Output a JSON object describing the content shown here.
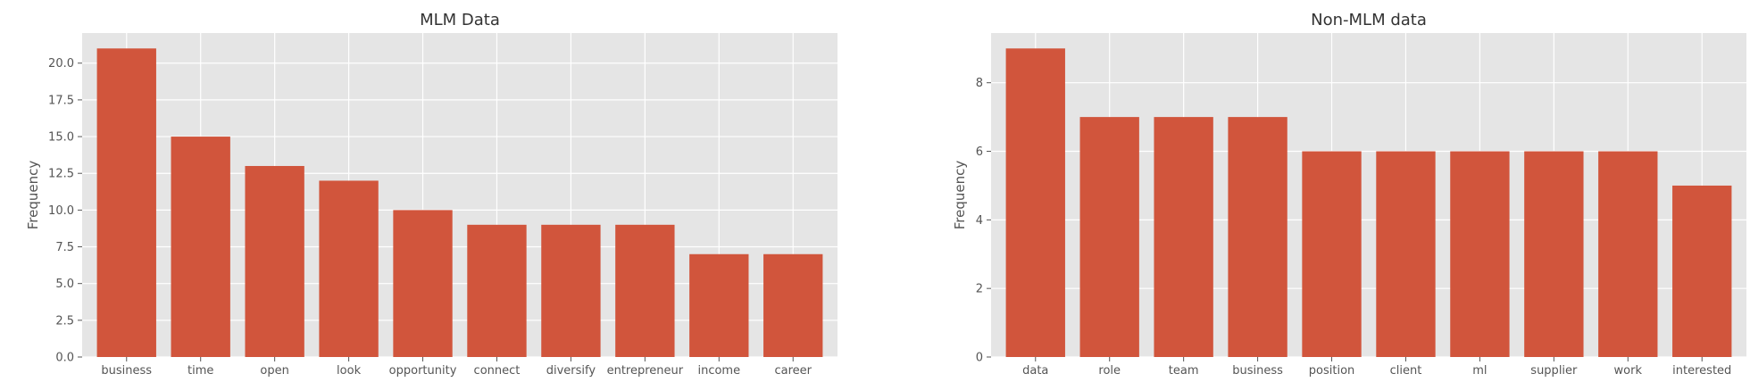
{
  "chart_data": [
    {
      "type": "bar",
      "title": "MLM Data",
      "xlabel": "",
      "ylabel": "Frequency",
      "categories": [
        "business",
        "time",
        "open",
        "look",
        "opportunity",
        "connect",
        "diversify",
        "entrepreneur",
        "income",
        "career"
      ],
      "values": [
        21,
        15,
        13,
        12,
        10,
        9,
        9,
        9,
        7,
        7
      ],
      "ylim": [
        0,
        22.05
      ],
      "yticks": [
        0,
        2.5,
        5,
        7.5,
        10,
        12.5,
        15,
        17.5,
        20
      ],
      "ytick_labels": [
        "0.0",
        "2.5",
        "5.0",
        "7.5",
        "10.0",
        "12.5",
        "15.0",
        "17.5",
        "20.0"
      ],
      "grid": true,
      "bar_color": "#d1553c",
      "background_color": "#e5e5e5",
      "grid_color": "#ffffff"
    },
    {
      "type": "bar",
      "title": "Non-MLM data",
      "xlabel": "",
      "ylabel": "Frequency",
      "categories": [
        "data",
        "role",
        "team",
        "business",
        "position",
        "client",
        "ml",
        "supplier",
        "work",
        "interested"
      ],
      "values": [
        9,
        7,
        7,
        7,
        6,
        6,
        6,
        6,
        6,
        5
      ],
      "ylim": [
        0,
        9.45
      ],
      "yticks": [
        0,
        2,
        4,
        6,
        8
      ],
      "ytick_labels": [
        "0",
        "2",
        "4",
        "6",
        "8"
      ],
      "grid": true,
      "bar_color": "#d1553c",
      "background_color": "#e5e5e5",
      "grid_color": "#ffffff"
    }
  ]
}
